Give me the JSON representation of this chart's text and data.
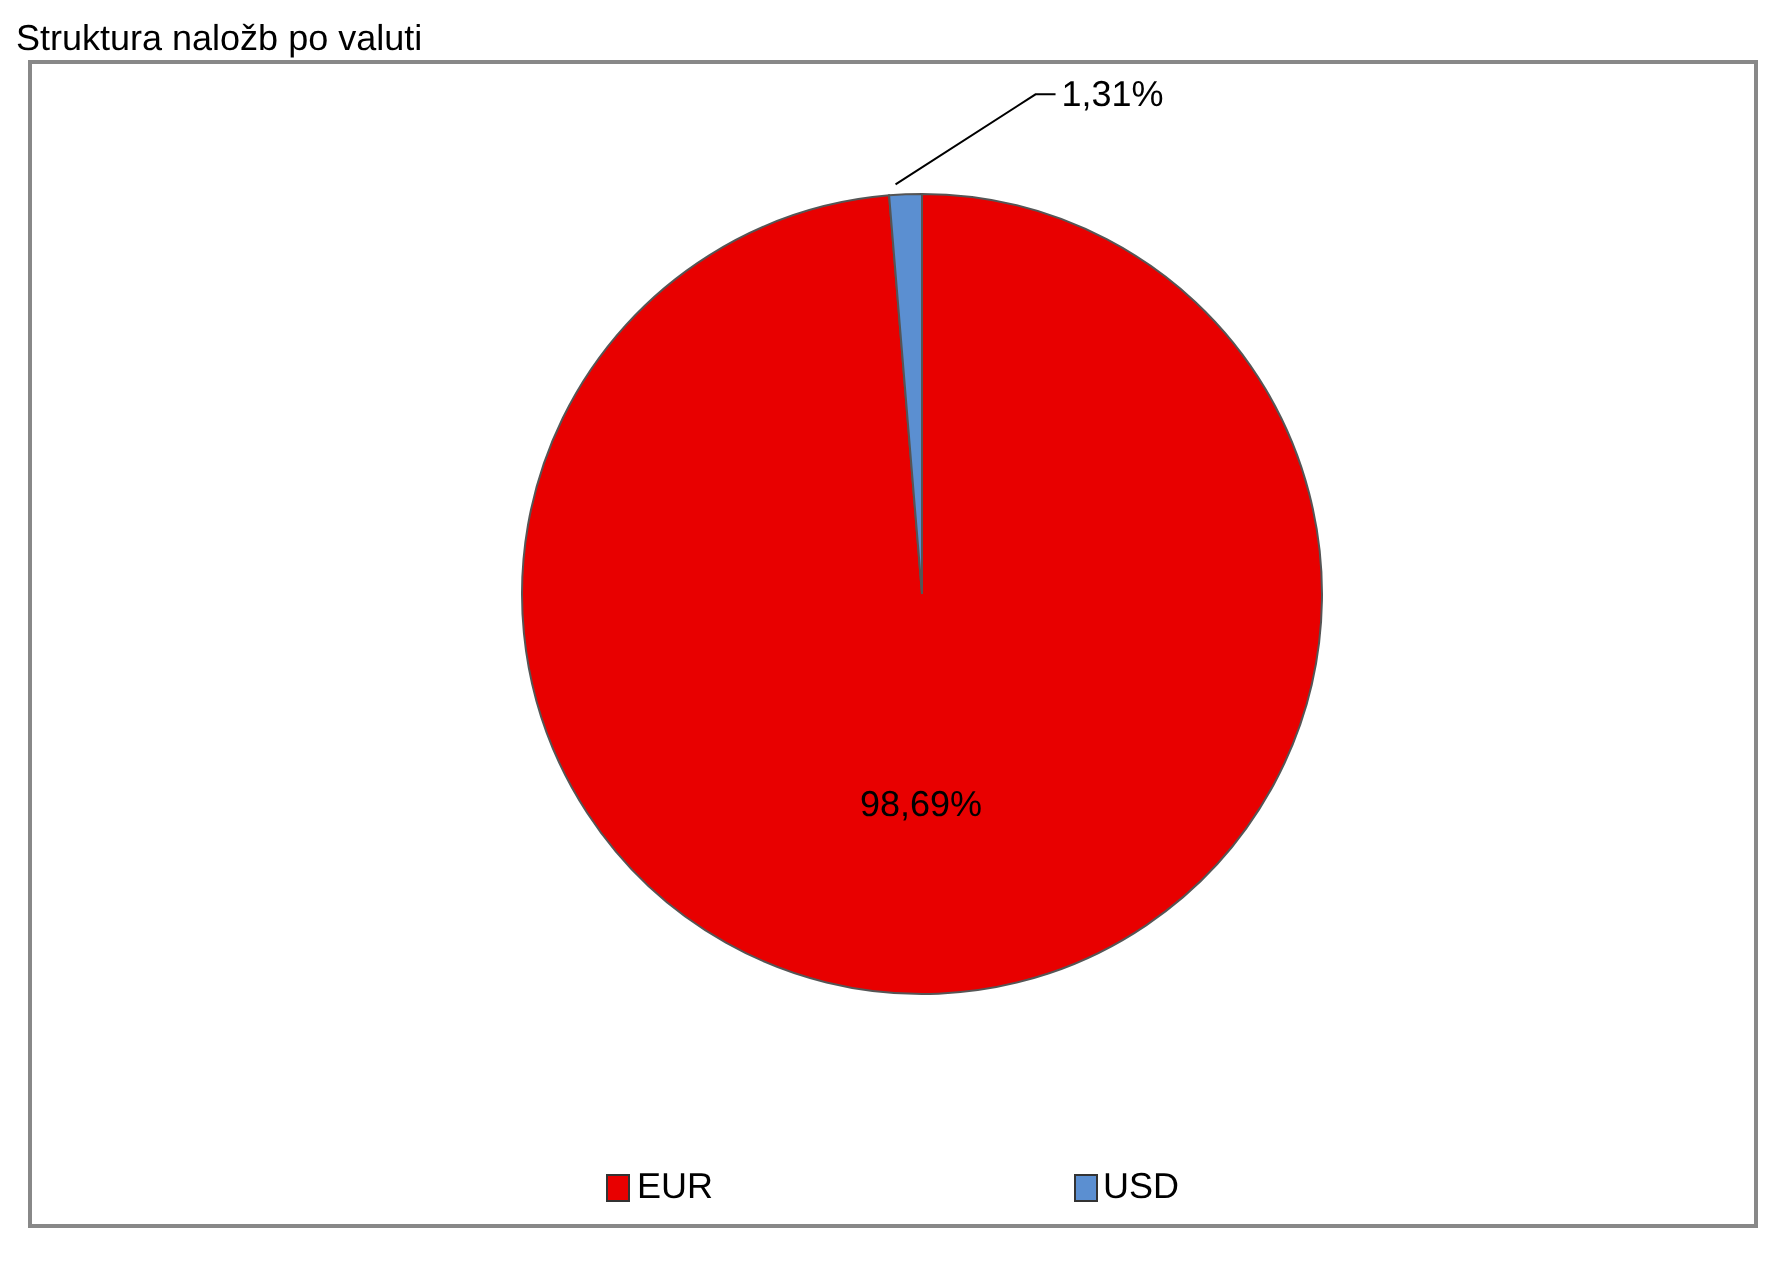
{
  "chart_data": {
    "type": "pie",
    "title": "Struktura naložb po valuti",
    "categories": [
      "EUR",
      "USD"
    ],
    "values": [
      98.69,
      1.31
    ],
    "value_labels": [
      "98,69%",
      "1,31%"
    ],
    "colors": [
      "#e80000",
      "#5b8fd1"
    ],
    "legend": "bottom"
  }
}
